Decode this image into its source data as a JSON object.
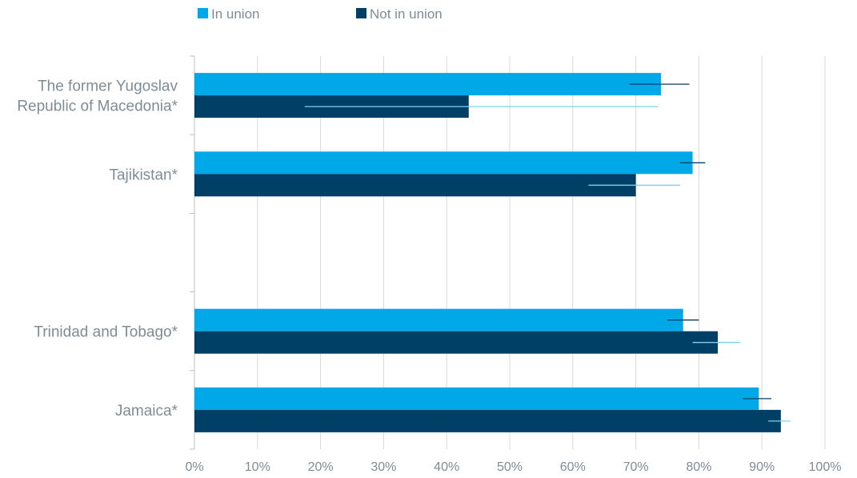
{
  "chart_data": {
    "type": "bar",
    "orientation": "horizontal",
    "categories": [
      [
        "The former Yugoslav",
        "Republic of Macedonia*"
      ],
      [
        "Tajikistan*"
      ],
      [],
      [
        "Trinidad and Tobago*"
      ],
      [
        "Jamaica*"
      ]
    ],
    "series": [
      {
        "name": "In union",
        "color": "#00a8e8",
        "errorbar_color": "#003f66",
        "values": [
          74,
          79,
          null,
          77.5,
          89.5
        ],
        "error_low": [
          69,
          77,
          null,
          75,
          87
        ],
        "error_high": [
          78.5,
          81,
          null,
          80,
          91.5
        ]
      },
      {
        "name": "Not in union",
        "color": "#003f66",
        "errorbar_color": "#7fd0f0",
        "values": [
          43.5,
          70,
          null,
          83,
          93
        ],
        "error_low": [
          17.5,
          62.5,
          null,
          79,
          91
        ],
        "error_high": [
          73.5,
          77,
          null,
          86.5,
          94.5
        ]
      }
    ],
    "xlim": [
      0,
      100
    ],
    "xticks": [
      "0%",
      "10%",
      "20%",
      "30%",
      "40%",
      "50%",
      "60%",
      "70%",
      "80%",
      "90%",
      "100%"
    ],
    "grid": true,
    "legend_position": "top-left"
  }
}
